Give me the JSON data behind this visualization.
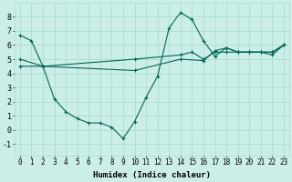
{
  "xlabel": "Humidex (Indice chaleur)",
  "background_color": "#cceee8",
  "grid_color": "#aaddcc",
  "line_color": "#006655",
  "xlim": [
    -0.5,
    23.5
  ],
  "ylim": [
    -1.8,
    9.0
  ],
  "xticks": [
    0,
    1,
    2,
    3,
    4,
    5,
    6,
    7,
    8,
    9,
    10,
    11,
    12,
    13,
    14,
    15,
    16,
    17,
    18,
    19,
    20,
    21,
    22,
    23
  ],
  "yticks": [
    -1,
    0,
    1,
    2,
    3,
    4,
    5,
    6,
    7,
    8
  ],
  "series": [
    {
      "x": [
        0,
        1,
        2,
        3,
        4,
        5,
        6,
        7,
        8,
        9,
        10,
        11,
        12,
        13,
        14,
        15,
        16,
        17,
        18,
        19,
        20,
        21,
        22,
        23
      ],
      "y": [
        6.7,
        6.3,
        4.5,
        2.2,
        1.3,
        0.8,
        0.5,
        0.5,
        0.2,
        -0.6,
        0.6,
        2.3,
        3.8,
        7.2,
        8.3,
        7.8,
        6.3,
        5.2,
        5.8,
        5.5,
        5.5,
        5.5,
        5.3,
        6.0
      ]
    },
    {
      "x": [
        0,
        2,
        10,
        14,
        15,
        16,
        17,
        18,
        19,
        20,
        21,
        22,
        23
      ],
      "y": [
        5.0,
        4.5,
        5.0,
        5.3,
        5.5,
        5.0,
        5.5,
        5.5,
        5.5,
        5.5,
        5.5,
        5.5,
        6.0
      ]
    },
    {
      "x": [
        0,
        2,
        10,
        14,
        16,
        17,
        18,
        19,
        20,
        21,
        22,
        23
      ],
      "y": [
        4.5,
        4.5,
        4.2,
        5.0,
        4.9,
        5.6,
        5.8,
        5.5,
        5.5,
        5.5,
        5.5,
        6.0
      ]
    }
  ],
  "tick_fontsize": 5.5,
  "xlabel_fontsize": 6.5
}
